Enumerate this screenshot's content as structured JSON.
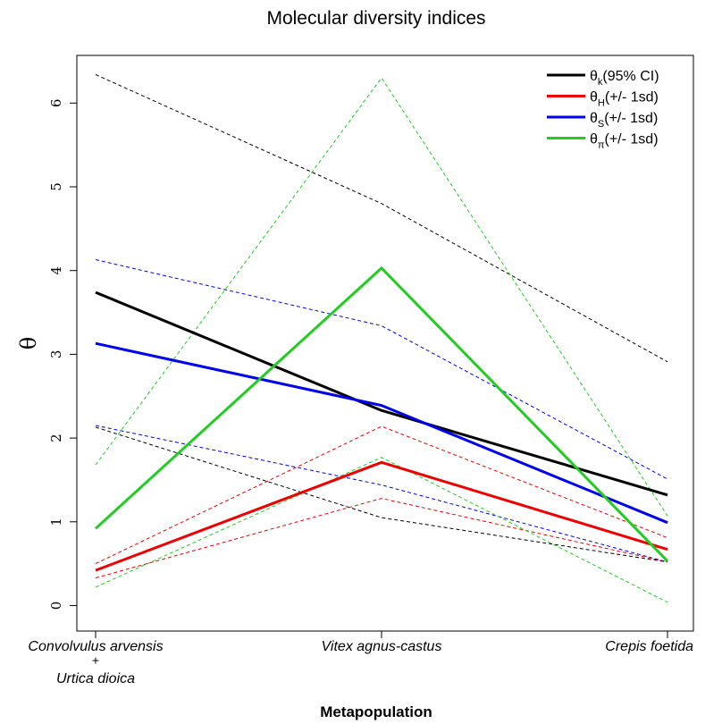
{
  "chart_data": {
    "type": "line",
    "title": "Molecular diversity indices",
    "xlabel": "Metapopulation",
    "ylabel": "θ",
    "categories": [
      [
        "Convolvulus arvensis",
        "+",
        "Urtica dioica"
      ],
      [
        "Vitex agnus-castus"
      ],
      [
        "Crepis foetida"
      ]
    ],
    "ylim": [
      0,
      6.5
    ],
    "yticks": [
      "0",
      "1",
      "2",
      "3",
      "4",
      "5",
      "6"
    ],
    "grid": false,
    "legend_position": "top-right",
    "legend": [
      {
        "symbol": "θ",
        "sub": "k",
        "label": "(95% CI)",
        "color": "#000000"
      },
      {
        "symbol": "θ",
        "sub": "H",
        "label": "(+/- 1sd)",
        "color": "#ee0000"
      },
      {
        "symbol": "θ",
        "sub": "S",
        "label": "(+/- 1sd)",
        "color": "#0000ee"
      },
      {
        "symbol": "θ",
        "sub": "π",
        "label": "(+/- 1sd)",
        "color": "#22cc22"
      }
    ],
    "series": [
      {
        "legend_index": 0,
        "color": "#000000",
        "values": [
          3.74,
          2.33,
          1.32
        ],
        "upper": [
          6.34,
          4.8,
          2.91
        ],
        "lower": [
          2.13,
          1.05,
          0.52
        ]
      },
      {
        "legend_index": 1,
        "color": "#ee0000",
        "values": [
          0.42,
          1.71,
          0.67
        ],
        "upper": [
          0.5,
          2.14,
          0.81
        ],
        "lower": [
          0.33,
          1.28,
          0.52
        ]
      },
      {
        "legend_index": 2,
        "color": "#0000ee",
        "values": [
          3.13,
          2.39,
          0.99
        ],
        "upper": [
          4.13,
          3.34,
          1.51
        ],
        "lower": [
          2.15,
          1.44,
          0.52
        ]
      },
      {
        "legend_index": 3,
        "color": "#22cc22",
        "values": [
          0.92,
          4.03,
          0.53
        ],
        "upper": [
          1.68,
          6.3,
          1.07
        ],
        "lower": [
          0.22,
          1.77,
          0.04
        ]
      }
    ]
  }
}
